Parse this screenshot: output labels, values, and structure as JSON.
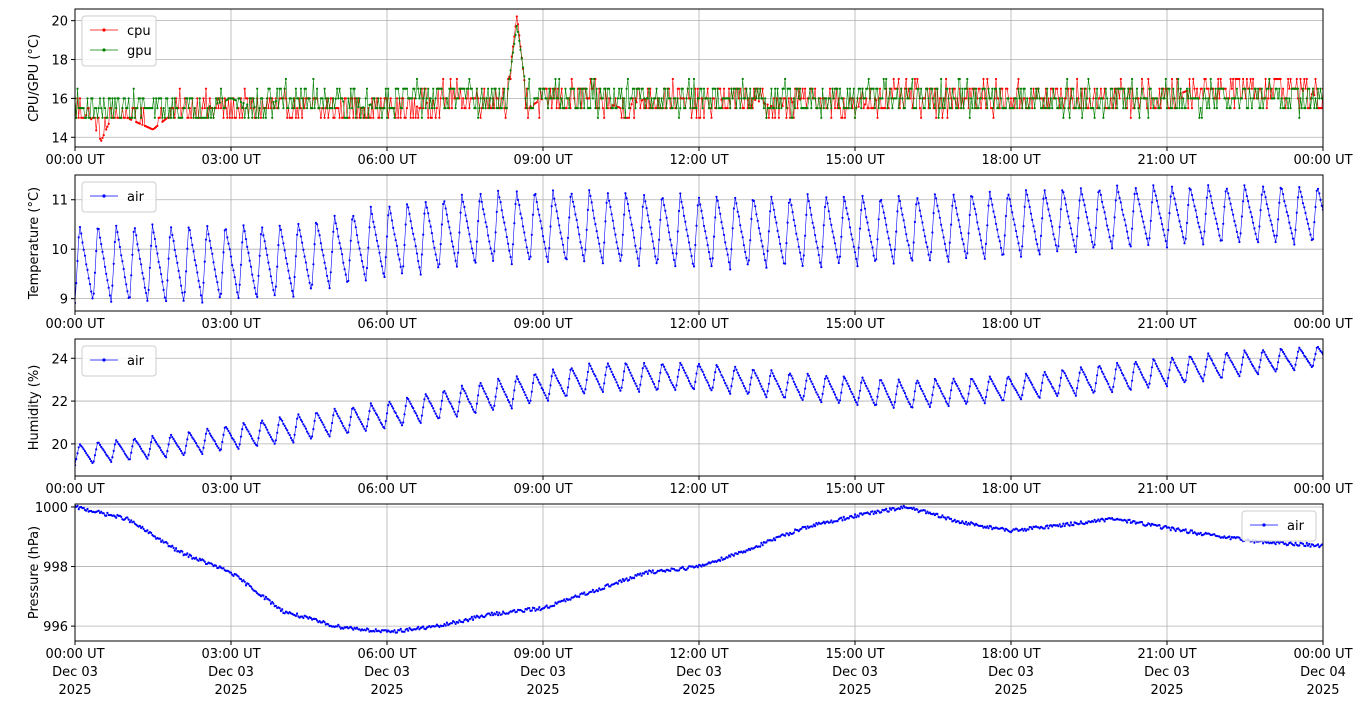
{
  "chart_data": [
    {
      "type": "line",
      "ylabel": "CPU/GPU (°C)",
      "xlim": [
        "00:00",
        "24:00"
      ],
      "ylim": [
        13.5,
        20.6
      ],
      "yticks": [
        14,
        16,
        18,
        20
      ],
      "xticks": [
        "00:00 UT",
        "03:00 UT",
        "06:00 UT",
        "09:00 UT",
        "12:00 UT",
        "15:00 UT",
        "18:00 UT",
        "21:00 UT",
        "00:00 UT"
      ],
      "grid": true,
      "legend": "top-left",
      "series": [
        {
          "name": "cpu",
          "color": "#ff0000",
          "x_hours": [
            0,
            0.3,
            0.5,
            0.7,
            1.0,
            1.5,
            2.0,
            2.5,
            3.0,
            3.5,
            4.0,
            4.5,
            5.0,
            5.5,
            6.0,
            6.5,
            7.0,
            7.5,
            8.0,
            8.3,
            8.5,
            8.7,
            9.0,
            9.5,
            10.0,
            10.5,
            11.0,
            11.5,
            12.0,
            12.5,
            13.0,
            13.5,
            14.0,
            14.5,
            15.0,
            15.5,
            16.0,
            16.5,
            17.0,
            17.5,
            18.0,
            18.5,
            19.0,
            19.5,
            20.0,
            20.5,
            21.0,
            21.5,
            22.0,
            22.5,
            23.0,
            23.5,
            24.0
          ],
          "values": [
            15.5,
            15.0,
            13.8,
            15.0,
            15.0,
            14.4,
            15.5,
            15.5,
            15.5,
            15.5,
            15.5,
            15.5,
            15.5,
            15.5,
            15.5,
            15.5,
            16.0,
            16.0,
            16.0,
            16.0,
            20.3,
            15.5,
            16.0,
            16.0,
            16.0,
            15.5,
            16.0,
            16.0,
            15.5,
            16.0,
            16.0,
            15.5,
            16.0,
            16.0,
            15.5,
            16.0,
            16.0,
            16.0,
            16.0,
            16.0,
            16.0,
            16.0,
            16.0,
            16.0,
            16.0,
            16.0,
            16.0,
            16.5,
            16.5,
            16.5,
            16.5,
            16.5,
            16.0
          ]
        },
        {
          "name": "gpu",
          "color": "#008000",
          "x_hours": [
            0,
            0.5,
            1.0,
            1.5,
            2.0,
            2.5,
            3.0,
            3.5,
            4.0,
            4.5,
            5.0,
            5.5,
            6.0,
            6.5,
            7.0,
            7.5,
            8.0,
            8.3,
            8.5,
            8.7,
            9.0,
            9.5,
            10.0,
            10.5,
            11.0,
            11.5,
            12.0,
            12.5,
            13.0,
            13.5,
            14.0,
            14.5,
            15.0,
            15.5,
            16.0,
            16.5,
            17.0,
            17.5,
            18.0,
            18.5,
            19.0,
            19.5,
            20.0,
            20.5,
            21.0,
            21.5,
            22.0,
            22.5,
            23.0,
            23.5,
            24.0
          ],
          "values": [
            15.5,
            15.5,
            15.5,
            15.5,
            15.5,
            15.5,
            16.0,
            15.5,
            16.0,
            16.0,
            16.0,
            15.5,
            16.0,
            16.0,
            16.0,
            16.0,
            16.0,
            16.0,
            19.8,
            16.0,
            16.0,
            16.0,
            16.0,
            16.0,
            16.0,
            16.0,
            16.0,
            16.0,
            16.0,
            16.0,
            16.0,
            16.0,
            16.0,
            16.0,
            16.0,
            16.0,
            16.0,
            16.0,
            16.0,
            16.0,
            16.0,
            16.0,
            16.0,
            16.0,
            16.0,
            16.0,
            16.0,
            16.0,
            16.0,
            16.0,
            16.0
          ]
        }
      ]
    },
    {
      "type": "line",
      "ylabel": "Temperature (°C)",
      "xlim": [
        "00:00",
        "24:00"
      ],
      "ylim": [
        8.75,
        11.5
      ],
      "yticks": [
        9,
        10,
        11
      ],
      "xticks": [
        "00:00 UT",
        "03:00 UT",
        "06:00 UT",
        "09:00 UT",
        "12:00 UT",
        "15:00 UT",
        "18:00 UT",
        "21:00 UT",
        "00:00 UT"
      ],
      "grid": true,
      "legend": "top-left",
      "series": [
        {
          "name": "air",
          "color": "#0000ff",
          "x_hours": [
            0,
            2,
            4,
            6,
            8,
            10,
            12,
            14,
            16,
            18,
            20,
            22,
            24
          ],
          "min_values": [
            8.9,
            8.9,
            9.0,
            9.4,
            9.7,
            9.7,
            9.6,
            9.6,
            9.7,
            9.8,
            10.0,
            10.1,
            10.1
          ],
          "max_values": [
            10.5,
            10.5,
            10.5,
            10.9,
            11.2,
            11.2,
            11.1,
            11.1,
            11.1,
            11.2,
            11.3,
            11.3,
            11.3
          ],
          "cycle_period_minutes": 21
        }
      ]
    },
    {
      "type": "line",
      "ylabel": "Humidity (%)",
      "xlim": [
        "00:00",
        "24:00"
      ],
      "ylim": [
        18.5,
        24.9
      ],
      "yticks": [
        20,
        22,
        24
      ],
      "xticks": [
        "00:00 UT",
        "03:00 UT",
        "06:00 UT",
        "09:00 UT",
        "12:00 UT",
        "15:00 UT",
        "18:00 UT",
        "21:00 UT",
        "00:00 UT"
      ],
      "grid": true,
      "legend": "top-left",
      "series": [
        {
          "name": "air",
          "color": "#0000ff",
          "x_hours": [
            0,
            2,
            4,
            6,
            8,
            10,
            12,
            14,
            16,
            18,
            20,
            22,
            24
          ],
          "min_values": [
            19.0,
            19.4,
            20.0,
            20.7,
            21.5,
            22.4,
            22.5,
            22.0,
            21.6,
            22.0,
            22.4,
            23.0,
            23.6
          ],
          "max_values": [
            20.0,
            20.5,
            21.3,
            22.0,
            23.0,
            23.8,
            23.8,
            23.3,
            23.0,
            23.2,
            23.8,
            24.3,
            24.6
          ],
          "cycle_period_minutes": 21
        }
      ]
    },
    {
      "type": "line",
      "ylabel": "Pressure (hPa)",
      "xlim": [
        "2025-12-03 00:00",
        "2025-12-04 00:00"
      ],
      "ylim": [
        995.5,
        1000.1
      ],
      "yticks": [
        996,
        998,
        1000
      ],
      "xticks": [
        "00:00 UT",
        "03:00 UT",
        "06:00 UT",
        "09:00 UT",
        "12:00 UT",
        "15:00 UT",
        "18:00 UT",
        "21:00 UT",
        "00:00 UT"
      ],
      "xticks_date": [
        "Dec 03",
        "Dec 03",
        "Dec 03",
        "Dec 03",
        "Dec 03",
        "Dec 03",
        "Dec 03",
        "Dec 03",
        "Dec 04"
      ],
      "xticks_year": [
        "2025",
        "2025",
        "2025",
        "2025",
        "2025",
        "2025",
        "2025",
        "2025",
        "2025"
      ],
      "grid": true,
      "legend": "top-right",
      "series": [
        {
          "name": "air",
          "color": "#0000ff",
          "x_hours": [
            0,
            1,
            2,
            3,
            4,
            5,
            6,
            7,
            8,
            9,
            10,
            11,
            12,
            13,
            14,
            15,
            16,
            17,
            18,
            19,
            20,
            21,
            22,
            23,
            24
          ],
          "values": [
            1000.0,
            999.6,
            998.5,
            997.8,
            996.5,
            996.0,
            995.8,
            996.0,
            996.4,
            996.6,
            997.2,
            997.8,
            998.0,
            998.6,
            999.3,
            999.7,
            1000.0,
            999.5,
            999.2,
            999.4,
            999.6,
            999.3,
            999.0,
            998.8,
            998.7
          ]
        }
      ]
    }
  ]
}
